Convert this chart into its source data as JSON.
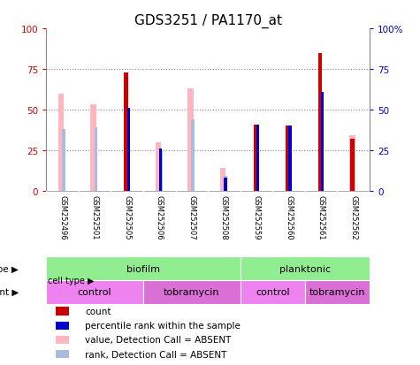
{
  "title": "GDS3251 / PA1170_at",
  "samples": [
    "GSM252496",
    "GSM252501",
    "GSM252505",
    "GSM252506",
    "GSM252507",
    "GSM252508",
    "GSM252559",
    "GSM252560",
    "GSM252561",
    "GSM252562"
  ],
  "count": [
    0,
    0,
    73,
    0,
    0,
    0,
    41,
    40,
    85,
    32
  ],
  "percentile": [
    0,
    0,
    51,
    26,
    0,
    8,
    41,
    40,
    61,
    0
  ],
  "value_absent": [
    60,
    53,
    0,
    30,
    63,
    14,
    0,
    0,
    0,
    34
  ],
  "rank_absent": [
    38,
    39,
    0,
    25,
    44,
    9,
    0,
    0,
    0,
    0
  ],
  "has_percentile": [
    false,
    false,
    true,
    true,
    false,
    true,
    true,
    true,
    true,
    true
  ],
  "cell_type_color": "#90EE90",
  "agent_control_color": "#EE82EE",
  "agent_tobramycin_color": "#DA70D6",
  "bar_color_count": "#CC0000",
  "bar_color_percentile": "#0000CC",
  "bar_color_value_absent": "#FFB6C1",
  "bar_color_rank_absent": "#AABBDD",
  "axis_bg": "#FFFFFF",
  "sample_bg": "#C8C8C8",
  "ylim": [
    0,
    100
  ],
  "yticks": [
    0,
    25,
    50,
    75,
    100
  ]
}
